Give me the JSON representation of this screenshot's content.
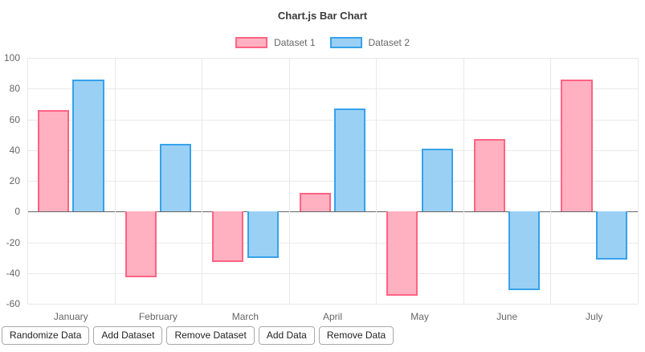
{
  "chart_data": {
    "type": "bar",
    "title": "Chart.js Bar Chart",
    "categories": [
      "January",
      "February",
      "March",
      "April",
      "May",
      "June",
      "July"
    ],
    "series": [
      {
        "name": "Dataset 1",
        "color": "#ff6384",
        "fill": "#ffb1c1",
        "values": [
          66,
          -43,
          -33,
          12,
          -55,
          47,
          86
        ]
      },
      {
        "name": "Dataset 2",
        "color": "#36a2eb",
        "fill": "#9bd0f5",
        "values": [
          86,
          44,
          -30,
          67,
          41,
          -51,
          -31
        ]
      }
    ],
    "ylim": [
      -60,
      100
    ],
    "yticks": [
      100,
      80,
      60,
      40,
      20,
      0,
      -20,
      -40,
      -60
    ],
    "grid": true,
    "legend_position": "top",
    "xlabel": "",
    "ylabel": ""
  },
  "toolbar": {
    "buttons": [
      {
        "label": "Randomize Data"
      },
      {
        "label": "Add Dataset"
      },
      {
        "label": "Remove Dataset"
      },
      {
        "label": "Add Data"
      },
      {
        "label": "Remove Data"
      }
    ]
  }
}
